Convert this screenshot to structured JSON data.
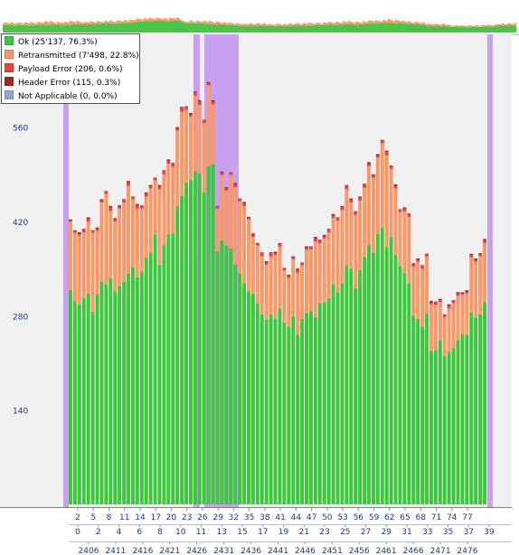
{
  "legend": {
    "items": [
      {
        "key": "ok",
        "label": "Ok (25'137, 76.3%)",
        "color": "#3cc83c"
      },
      {
        "key": "retransmitted",
        "label": "Retransmitted (7'498, 22.8%)",
        "color": "#fa9866"
      },
      {
        "key": "payload_error",
        "label": "Payload Error (206, 0.6%)",
        "color": "#f03c3c"
      },
      {
        "key": "header_error",
        "label": "Header Error (115, 0.3%)",
        "color": "#a02828"
      },
      {
        "key": "not_applicable",
        "label": "Not Applicable (0, 0.0%)",
        "color": "#8caad2"
      }
    ]
  },
  "colors": {
    "plot_background": "#f0f0f0",
    "highlight_band": "#c8a0f0",
    "axis_text": "#1a3a8a",
    "overview_green": "#46c846",
    "overview_orange": "#f0a064"
  },
  "chart_data": {
    "type": "bar",
    "stacked": true,
    "ylim": [
      0,
      640
    ],
    "yticks": [
      140,
      280,
      420,
      560
    ],
    "grid": false,
    "legend_position": "top-left",
    "series": [
      {
        "key": "ok",
        "name": "Ok",
        "values": [
          318,
          302,
          297,
          306,
          313,
          286,
          312,
          331,
          326,
          336,
          316,
          324,
          331,
          343,
          352,
          337,
          345,
          366,
          374,
          401,
          356,
          385,
          401,
          402,
          443,
          458,
          478,
          482,
          495,
          491,
          463,
          502,
          505,
          375,
          392,
          384,
          380,
          356,
          343,
          328,
          316,
          313,
          298,
          282,
          274,
          282,
          276,
          291,
          270,
          263,
          279,
          252,
          275,
          284,
          287,
          278,
          299,
          300,
          306,
          327,
          315,
          328,
          355,
          350,
          321,
          348,
          367,
          385,
          373,
          402,
          411,
          382,
          397,
          370,
          354,
          343,
          328,
          280,
          275,
          264,
          283,
          228,
          229,
          244,
          220,
          226,
          232,
          244,
          253,
          252,
          285,
          277,
          282,
          300
        ]
      },
      {
        "key": "retransmitted",
        "name": "Retransmitted",
        "values": [
          102,
          101,
          102,
          98,
          107,
          117,
          94,
          117,
          135,
          100,
          104,
          115,
          117,
          130,
          101,
          102,
          94,
          91,
          95,
          80,
          112,
          105,
          105,
          99,
          112,
          125,
          108,
          94,
          112,
          102,
          103,
          120,
          89,
          64,
          97,
          82,
          109,
          115,
          107,
          115,
          107,
          84,
          86,
          87,
          82,
          86,
          94,
          92,
          77,
          73,
          85,
          92,
          80,
          94,
          92,
          112,
          89,
          95,
          98,
          98,
          106,
          109,
          113,
          98,
          109,
          103,
          103,
          117,
          112,
          113,
          125,
          136,
          101,
          99,
          80,
          92,
          99,
          73,
          85,
          86,
          85,
          69,
          67,
          56,
          58,
          65,
          67,
          66,
          58,
          61,
          82,
          83,
          87,
          88
        ]
      },
      {
        "key": "payload_error",
        "name": "Payload Error",
        "values": [
          2,
          3,
          3,
          4,
          4,
          3,
          3,
          3,
          3,
          5,
          4,
          3,
          4,
          5,
          3,
          5,
          4,
          4,
          3,
          3,
          4,
          5,
          4,
          5,
          3,
          5,
          4,
          3,
          5,
          5,
          4,
          3,
          4,
          3,
          3,
          4,
          3,
          4,
          3,
          4,
          3,
          3,
          3,
          4,
          3,
          5,
          3,
          4,
          3,
          3,
          3,
          4,
          3,
          3,
          3,
          5,
          4,
          3,
          4,
          4,
          4,
          4,
          5,
          4,
          4,
          4,
          5,
          4,
          4,
          3,
          4,
          5,
          4,
          4,
          3,
          4,
          4,
          4,
          3,
          4,
          3,
          3,
          4,
          3,
          3,
          4,
          3,
          3,
          3,
          3,
          4,
          3,
          3,
          4
        ]
      },
      {
        "key": "header_error",
        "name": "Header Error",
        "values": [
          1,
          1,
          2,
          1,
          2,
          1,
          2,
          2,
          1,
          2,
          1,
          2,
          1,
          2,
          1,
          2,
          1,
          2,
          2,
          1,
          2,
          1,
          2,
          1,
          2,
          2,
          1,
          2,
          1,
          2,
          1,
          2,
          2,
          1,
          2,
          1,
          1,
          2,
          1,
          2,
          1,
          2,
          1,
          1,
          2,
          1,
          2,
          1,
          1,
          2,
          1,
          2,
          1,
          2,
          1,
          2,
          1,
          2,
          1,
          2,
          1,
          2,
          1,
          2,
          1,
          2,
          1,
          2,
          1,
          2,
          1,
          2,
          1,
          2,
          1,
          2,
          1,
          1,
          2,
          1,
          1,
          2,
          1,
          2,
          1,
          2,
          1,
          2,
          1,
          2,
          1,
          2,
          1,
          2
        ]
      },
      {
        "key": "not_applicable",
        "name": "Not Applicable",
        "values": [
          0,
          0,
          0,
          0,
          0,
          0,
          0,
          0,
          0,
          0,
          0,
          0,
          0,
          0,
          0,
          0,
          0,
          0,
          0,
          0,
          0,
          0,
          0,
          0,
          0,
          0,
          0,
          0,
          0,
          0,
          0,
          0,
          0,
          0,
          0,
          0,
          0,
          0,
          0,
          0,
          0,
          0,
          0,
          0,
          0,
          0,
          0,
          0,
          0,
          0,
          0,
          0,
          0,
          0,
          0,
          0,
          0,
          0,
          0,
          0,
          0,
          0,
          0,
          0,
          0,
          0,
          0,
          0,
          0,
          0,
          0,
          0,
          0,
          0,
          0,
          0,
          0,
          0,
          0,
          0,
          0,
          0,
          0,
          0,
          0,
          0,
          0,
          0,
          0,
          0,
          0,
          0,
          0,
          0
        ]
      }
    ],
    "x_axis_rows": [
      {
        "labels": [
          "2",
          "5",
          "8",
          "11",
          "14",
          "17",
          "20",
          "23",
          "26",
          "29",
          "32",
          "35",
          "38",
          "41",
          "44",
          "47",
          "50",
          "53",
          "56",
          "59",
          "62",
          "65",
          "68",
          "71",
          "74",
          "77"
        ]
      },
      {
        "labels": [
          "0",
          "2",
          "4",
          "6",
          "8",
          "10",
          "11",
          "13",
          "15",
          "17",
          "19",
          "21",
          "23",
          "25",
          "27",
          "29",
          "31",
          "33",
          "35",
          "37",
          "39"
        ]
      },
      {
        "labels": [
          "2406",
          "2411",
          "2416",
          "2421",
          "2426",
          "2431",
          "2436",
          "2441",
          "2446",
          "2451",
          "2456",
          "2461",
          "2466",
          "2471",
          "2476"
        ]
      }
    ]
  }
}
